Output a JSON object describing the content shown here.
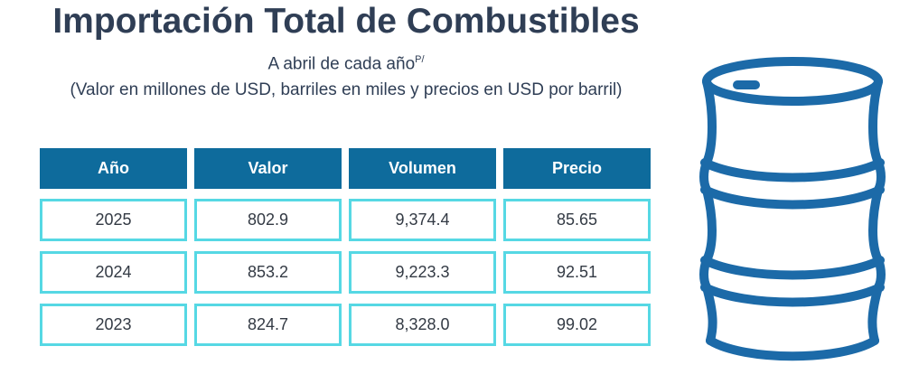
{
  "title": "Importación Total de Combustibles",
  "subtitle": "A abril de cada año",
  "subtitle_sup": "P/",
  "note": "(Valor en millones de USD, barriles en miles y precios en USD por barril)",
  "icon": "oil-barrel-icon",
  "colors": {
    "title": "#2f3e55",
    "header_bg": "#0e6b9c",
    "cell_border": "#56d8e4",
    "barrel": "#1c6aa8"
  },
  "table": {
    "headers": [
      "Año",
      "Valor",
      "Volumen",
      "Precio"
    ],
    "rows": [
      [
        "2025",
        "802.9",
        "9,374.4",
        "85.65"
      ],
      [
        "2024",
        "853.2",
        "9,223.3",
        "92.51"
      ],
      [
        "2023",
        "824.7",
        "8,328.0",
        "99.02"
      ]
    ]
  }
}
